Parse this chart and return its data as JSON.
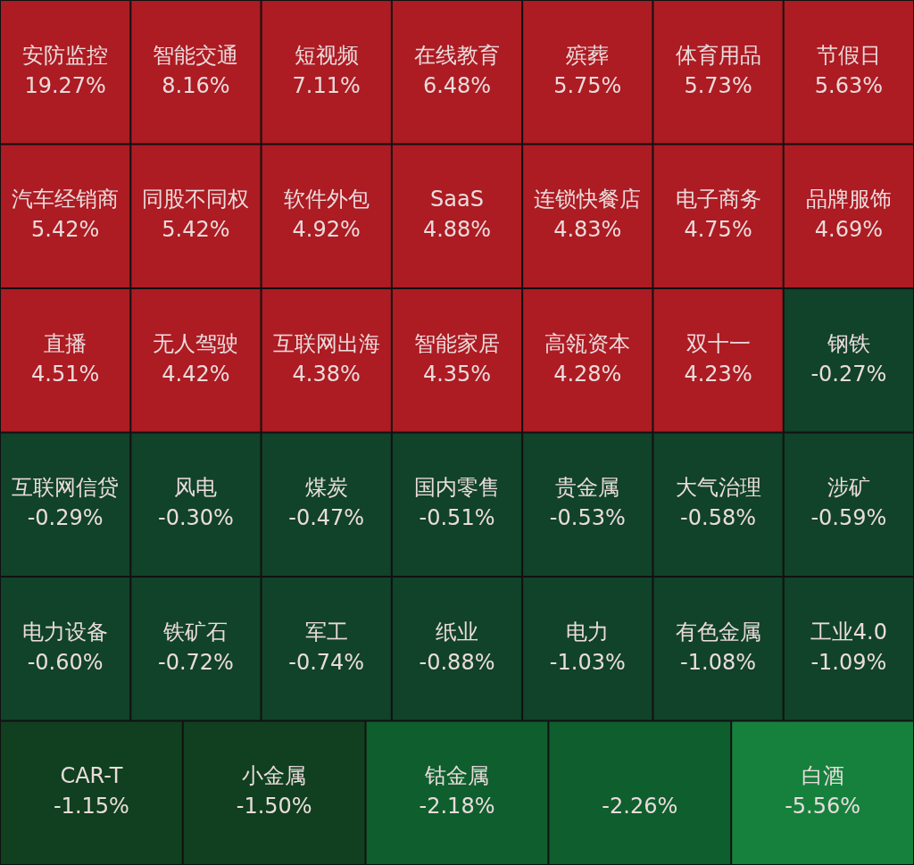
{
  "chart_data": {
    "type": "other",
    "categories": [
      "安防监控",
      "智能交通",
      "短视频",
      "在线教育",
      "殡葬",
      "体育用品",
      "节假日",
      "汽车经销商",
      "同股不同权",
      "软件外包",
      "SaaS",
      "连锁快餐店",
      "电子商务",
      "品牌服饰",
      "直播",
      "无人驾驶",
      "互联网出海",
      "智能家居",
      "高瓴资本",
      "双十一",
      "钢铁",
      "互联网信贷",
      "风电",
      "煤炭",
      "国内零售",
      "贵金属",
      "大气治理",
      "涉矿",
      "电力设备",
      "铁矿石",
      "军工",
      "纸业",
      "电力",
      "有色金属",
      "工业4.0",
      "CAR-T",
      "小金属",
      "钴金属",
      null,
      "白酒"
    ],
    "values": [
      19.27,
      8.16,
      7.11,
      6.48,
      5.75,
      5.73,
      5.63,
      5.42,
      5.42,
      4.92,
      4.88,
      4.83,
      4.75,
      4.69,
      4.51,
      4.42,
      4.38,
      4.35,
      4.28,
      4.23,
      -0.27,
      -0.29,
      -0.3,
      -0.47,
      -0.51,
      -0.53,
      -0.58,
      -0.59,
      -0.6,
      -0.72,
      -0.74,
      -0.88,
      -1.03,
      -1.08,
      -1.09,
      -1.15,
      -1.5,
      -2.18,
      -2.26,
      -5.56
    ],
    "value_labels": [
      "19.27%",
      "8.16%",
      "7.11%",
      "6.48%",
      "5.75%",
      "5.73%",
      "5.63%",
      "5.42%",
      "5.42%",
      "4.92%",
      "4.88%",
      "4.83%",
      "4.75%",
      "4.69%",
      "4.51%",
      "4.42%",
      "4.38%",
      "4.35%",
      "4.28%",
      "4.23%",
      "-0.27%",
      "-0.29%",
      "-0.30%",
      "-0.47%",
      "-0.51%",
      "-0.53%",
      "-0.58%",
      "-0.59%",
      "-0.60%",
      "-0.72%",
      "-0.74%",
      "-0.88%",
      "-1.03%",
      "-1.08%",
      "-1.09%",
      "-1.15%",
      "-1.50%",
      "-2.18%",
      "-2.26%",
      "-5.56%"
    ],
    "colors": [
      "#ad1b23",
      "#ad1b23",
      "#ad1b23",
      "#ad1b23",
      "#ad1b23",
      "#ad1b23",
      "#ad1b23",
      "#ad1b23",
      "#ad1b23",
      "#ad1b23",
      "#ad1b23",
      "#ad1b23",
      "#ad1b23",
      "#ad1b23",
      "#ad1b23",
      "#ad1b23",
      "#ad1b23",
      "#ad1b23",
      "#ad1b23",
      "#ad1b23",
      "#11422a",
      "#11422a",
      "#11422a",
      "#11422a",
      "#11422a",
      "#11422a",
      "#11422a",
      "#11422a",
      "#11422a",
      "#11422a",
      "#11422a",
      "#11422a",
      "#11422a",
      "#11422a",
      "#11422a",
      "#10401f",
      "#10401f",
      "#0f5e2e",
      "#0f5e2e",
      "#15813d"
    ]
  }
}
